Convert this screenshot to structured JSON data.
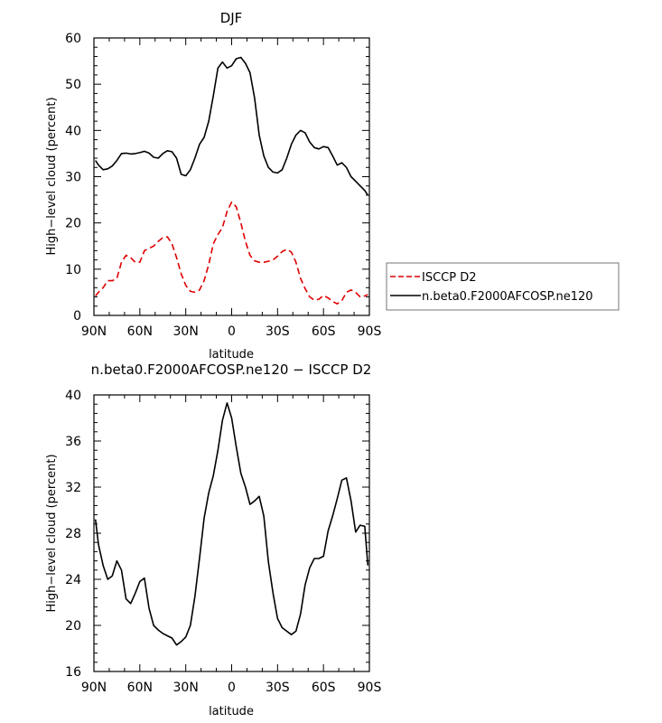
{
  "chart_data": [
    {
      "type": "line",
      "title": "DJF",
      "xlabel": "latitude",
      "ylabel": "High−level cloud (percent)",
      "xlim": [
        -90,
        90
      ],
      "ylim": [
        0,
        60
      ],
      "xticks": [
        -90,
        -60,
        -30,
        0,
        30,
        60,
        90
      ],
      "xtick_labels": [
        "90N",
        "60N",
        "30N",
        "0",
        "30S",
        "60S",
        "90S"
      ],
      "yticks": [
        0,
        10,
        20,
        30,
        40,
        50,
        60
      ],
      "ytick_labels": [
        "0",
        "10",
        "20",
        "30",
        "40",
        "50",
        "60"
      ],
      "legend": {
        "placement": "outside-right",
        "entries": [
          {
            "name": "ISCCP D2",
            "color": "#e00000",
            "dash": "dashed"
          },
          {
            "name": "n.beta0.F2000AFCOSP.ne120",
            "color": "#000000",
            "dash": "solid"
          }
        ]
      },
      "series": [
        {
          "name": "ISCCP D2",
          "color": "#e00000",
          "dash": "dashed",
          "x": [
            -89,
            -87,
            -84,
            -81,
            -78,
            -75,
            -72,
            -69,
            -66,
            -63,
            -60,
            -57,
            -54,
            -51,
            -48,
            -45,
            -42,
            -39,
            -36,
            -33,
            -30,
            -27,
            -24,
            -21,
            -18,
            -15,
            -12,
            -9,
            -6,
            -3,
            0,
            3,
            6,
            9,
            12,
            15,
            18,
            21,
            24,
            27,
            30,
            33,
            36,
            39,
            42,
            45,
            48,
            51,
            54,
            57,
            60,
            63,
            66,
            69,
            72,
            75,
            78,
            81,
            84,
            87,
            89
          ],
          "y": [
            4.2,
            5.0,
            6.0,
            7.5,
            7.5,
            8.0,
            11.5,
            13.0,
            12.5,
            11.5,
            11.5,
            14.0,
            14.5,
            15.0,
            16.0,
            16.8,
            17.0,
            15.5,
            12.5,
            9.0,
            6.5,
            5.2,
            5.0,
            5.5,
            7.5,
            11.0,
            15.5,
            17.5,
            19.0,
            22.5,
            24.5,
            23.5,
            20.0,
            16.0,
            13.0,
            11.8,
            11.5,
            11.5,
            11.7,
            12.0,
            12.8,
            13.8,
            14.3,
            13.7,
            11.5,
            8.0,
            5.8,
            4.0,
            3.3,
            3.5,
            4.3,
            3.8,
            3.0,
            2.5,
            3.2,
            5.0,
            5.5,
            5.0,
            4.0,
            4.2,
            4.5
          ]
        },
        {
          "name": "n.beta0.F2000AFCOSP.ne120",
          "color": "#000000",
          "dash": "solid",
          "x": [
            -89,
            -87,
            -84,
            -81,
            -78,
            -75,
            -72,
            -69,
            -66,
            -63,
            -60,
            -57,
            -54,
            -51,
            -48,
            -45,
            -42,
            -39,
            -36,
            -33,
            -30,
            -27,
            -24,
            -21,
            -18,
            -15,
            -12,
            -9,
            -6,
            -3,
            0,
            3,
            6,
            9,
            12,
            15,
            18,
            21,
            24,
            27,
            30,
            33,
            36,
            39,
            42,
            45,
            48,
            51,
            54,
            57,
            60,
            63,
            66,
            69,
            72,
            75,
            78,
            81,
            84,
            87,
            89
          ],
          "y": [
            33.5,
            32.5,
            31.5,
            31.7,
            32.3,
            33.5,
            35.0,
            35.1,
            34.9,
            35.0,
            35.2,
            35.5,
            35.1,
            34.2,
            34.0,
            35.0,
            35.6,
            35.4,
            34.0,
            30.5,
            30.2,
            31.5,
            34.0,
            37.0,
            38.5,
            42.0,
            47.5,
            53.5,
            54.8,
            53.5,
            54.0,
            55.5,
            55.8,
            54.5,
            52.5,
            47.0,
            39.0,
            34.5,
            32.0,
            31.0,
            30.8,
            31.5,
            34.0,
            37.0,
            39.0,
            40.0,
            39.5,
            37.5,
            36.3,
            36.0,
            36.5,
            36.3,
            34.5,
            32.5,
            33.0,
            32.0,
            30.0,
            29.0,
            28.0,
            27.0,
            26.0
          ]
        }
      ]
    },
    {
      "type": "line",
      "title": "n.beta0.F2000AFCOSP.ne120  −  ISCCP D2",
      "xlabel": "latitude",
      "ylabel": "High−level cloud (percent)",
      "xlim": [
        -90,
        90
      ],
      "ylim": [
        16,
        40
      ],
      "xticks": [
        -90,
        -60,
        -30,
        0,
        30,
        60,
        90
      ],
      "xtick_labels": [
        "90N",
        "60N",
        "30N",
        "0",
        "30S",
        "60S",
        "90S"
      ],
      "yticks": [
        16,
        20,
        24,
        28,
        32,
        36,
        40
      ],
      "ytick_labels": [
        "16",
        "20",
        "24",
        "28",
        "32",
        "36",
        "40"
      ],
      "series": [
        {
          "name": "n.beta0.F2000AFCOSP.ne120 − ISCCP D2",
          "color": "#000000",
          "dash": "solid",
          "x": [
            -89,
            -87,
            -84,
            -81,
            -78,
            -75,
            -72,
            -69,
            -66,
            -63,
            -60,
            -57,
            -54,
            -51,
            -48,
            -45,
            -42,
            -39,
            -36,
            -33,
            -30,
            -27,
            -24,
            -21,
            -18,
            -15,
            -12,
            -9,
            -6,
            -3,
            0,
            3,
            6,
            9,
            12,
            15,
            18,
            21,
            24,
            27,
            30,
            33,
            36,
            39,
            42,
            45,
            48,
            51,
            54,
            57,
            60,
            63,
            66,
            69,
            72,
            75,
            78,
            81,
            84,
            87,
            89
          ],
          "y": [
            29.2,
            27.0,
            25.2,
            24.0,
            24.3,
            25.6,
            24.8,
            22.3,
            21.9,
            22.8,
            23.8,
            24.1,
            21.5,
            20.0,
            19.6,
            19.3,
            19.1,
            18.9,
            18.3,
            18.6,
            19.0,
            20.0,
            22.5,
            25.8,
            29.3,
            31.5,
            33.0,
            35.2,
            37.8,
            39.3,
            38.0,
            35.5,
            33.2,
            32.0,
            30.5,
            30.8,
            31.2,
            29.5,
            25.5,
            22.8,
            20.6,
            19.8,
            19.5,
            19.2,
            19.5,
            21.0,
            23.5,
            25.0,
            25.8,
            25.8,
            26.0,
            28.2,
            29.5,
            31.0,
            32.6,
            32.8,
            30.8,
            28.1,
            28.7,
            28.6,
            25.2
          ]
        }
      ]
    }
  ]
}
